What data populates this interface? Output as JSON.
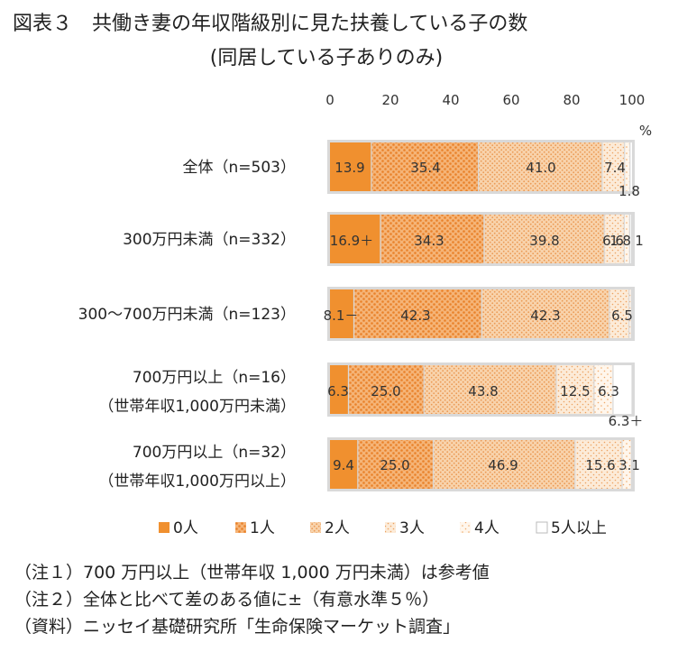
{
  "title_line1": "図表３　共働き妻の年収階級別に見た扶養している子の数",
  "title_line2": "(同居している子ありのみ)",
  "colors": {
    "s0": "#f0902f",
    "s1": "#f2a460",
    "s2": "#f4bf8c",
    "s3": "#f7d7b4",
    "s4": "#fae8d4",
    "s5": "#ffffff",
    "track": "#d9d9d9"
  },
  "chart_data": {
    "type": "bar",
    "orientation": "horizontal",
    "stacked": true,
    "unit": "%",
    "xlim": [
      0,
      100
    ],
    "ticks": [
      "0",
      "20",
      "40",
      "60",
      "80",
      "100"
    ],
    "categories": [
      [
        "全体（n=503）"
      ],
      [
        "300万円未満（n=332）"
      ],
      [
        "300～700万円未満（n=123）"
      ],
      [
        "700万円以上（n=16）",
        "（世帯年収1,000万円未満）"
      ],
      [
        "700万円以上（n=32）",
        "（世帯年収1,000万円以上）"
      ]
    ],
    "series": [
      {
        "name": "0人",
        "values": [
          13.9,
          16.9,
          8.1,
          6.3,
          9.4
        ]
      },
      {
        "name": "1人",
        "values": [
          35.4,
          34.3,
          42.3,
          25.0,
          25.0
        ]
      },
      {
        "name": "2人",
        "values": [
          41.0,
          39.8,
          42.3,
          43.8,
          46.9
        ]
      },
      {
        "name": "3人",
        "values": [
          7.4,
          6.6,
          6.5,
          12.5,
          15.6
        ]
      },
      {
        "name": "4人",
        "values": [
          1.8,
          1.8,
          0.8,
          6.3,
          3.1
        ]
      },
      {
        "name": "5人以上",
        "values": [
          0.0,
          0.6,
          0.0,
          6.3,
          0.0
        ]
      }
    ],
    "labels": [
      [
        "13.9",
        "35.4",
        "41.0",
        "7.4",
        "1.8",
        ""
      ],
      [
        "16.9＋",
        "34.3",
        "39.8",
        "6.6",
        "1.8",
        "1"
      ],
      [
        "8.1－",
        "42.3",
        "42.3",
        "6.5",
        "",
        ""
      ],
      [
        "6.3",
        "25.0",
        "43.8",
        "12.5",
        "6.3",
        "6.3＋"
      ],
      [
        "9.4",
        "25.0",
        "46.9",
        "15.6",
        "3.1",
        ""
      ]
    ]
  },
  "notes": [
    "（注１）700 万円以上（世帯年収 1,000 万円未満）は参考値",
    "（注２）全体と比べて差のある値に±（有意水準５％）",
    "（資料）ニッセイ基礎研究所「生命保険マーケット調査」"
  ]
}
